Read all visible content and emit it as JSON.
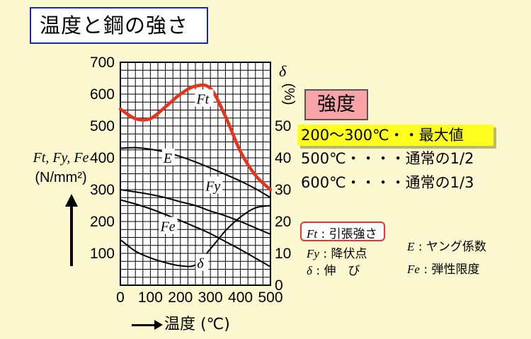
{
  "title": "温度と鋼の強さ",
  "y_left_label": {
    "symbols": "Ft, Fy, Fe",
    "unit": "(N/mm²)"
  },
  "y_right_label": {
    "symbol": "δ",
    "unit": "(%)"
  },
  "x_label": "温度 (℃)",
  "strength_box": "強度",
  "notes": [
    "200〜300℃・・最大値",
    "500℃・・・・通常の1/2",
    "600℃・・・・通常の1/3"
  ],
  "legend": [
    {
      "symbol": "Ft",
      "text": ": 引張強さ"
    },
    {
      "symbol": "Fy",
      "text": ": 降伏点"
    },
    {
      "symbol": "δ",
      "text": ": 伸　び"
    },
    {
      "symbol": "E",
      "text": ": ヤング係数"
    },
    {
      "symbol": "Fe",
      "text": ": 弾性限度"
    }
  ],
  "chart_data": {
    "type": "line",
    "x_ticks": [
      0,
      100,
      200,
      300,
      400,
      500
    ],
    "y_left_ticks": [
      100,
      200,
      300,
      400,
      500,
      600,
      700
    ],
    "y_right_ticks": [
      0,
      10,
      20,
      30,
      40,
      50
    ],
    "xlim": [
      0,
      500
    ],
    "ylim_left": [
      0,
      700
    ],
    "ylim_right": [
      0,
      50
    ],
    "grid": true,
    "colors": {
      "Ft": "#e8321a",
      "other": "#000000"
    },
    "series": [
      {
        "name": "Ft",
        "axis": "left",
        "x": [
          0,
          50,
          100,
          150,
          200,
          250,
          300,
          350,
          400,
          450,
          500
        ],
        "y": [
          553,
          523,
          523,
          560,
          600,
          625,
          618,
          530,
          420,
          345,
          300
        ]
      },
      {
        "name": "E",
        "axis": "left",
        "x": [
          0,
          50,
          100,
          150,
          200,
          250,
          300,
          350,
          400,
          450,
          500
        ],
        "y": [
          430,
          432,
          427,
          418,
          404,
          387,
          368,
          348,
          327,
          303,
          275
        ]
      },
      {
        "name": "Fy",
        "axis": "left",
        "x": [
          0,
          50,
          100,
          150,
          200,
          250,
          300,
          350,
          400,
          450,
          500
        ],
        "y": [
          300,
          293,
          285,
          275,
          262,
          250,
          233,
          218,
          200,
          180,
          160
        ]
      },
      {
        "name": "Fe",
        "axis": "left",
        "x": [
          0,
          50,
          100,
          150,
          200,
          250,
          300,
          350,
          400,
          450,
          500
        ],
        "y": [
          268,
          255,
          240,
          222,
          203,
          183,
          162,
          137,
          112,
          85,
          58
        ]
      },
      {
        "name": "δ",
        "axis": "right",
        "x": [
          0,
          50,
          100,
          150,
          200,
          250,
          300,
          350,
          400,
          450,
          500
        ],
        "y": [
          14.3,
          10.7,
          8.6,
          7.1,
          6.1,
          6.4,
          11.4,
          17.1,
          21.4,
          24.3,
          25.0
        ]
      }
    ],
    "curve_labels": [
      {
        "name": "Ft",
        "x": 270,
        "y": 570
      },
      {
        "name": "E",
        "x": 160,
        "y": 385
      },
      {
        "name": "Fy",
        "x": 300,
        "y": 297
      },
      {
        "name": "Fe",
        "x": 150,
        "y": 170
      },
      {
        "name": "δ",
        "x": 272,
        "y": 5.4
      }
    ]
  }
}
